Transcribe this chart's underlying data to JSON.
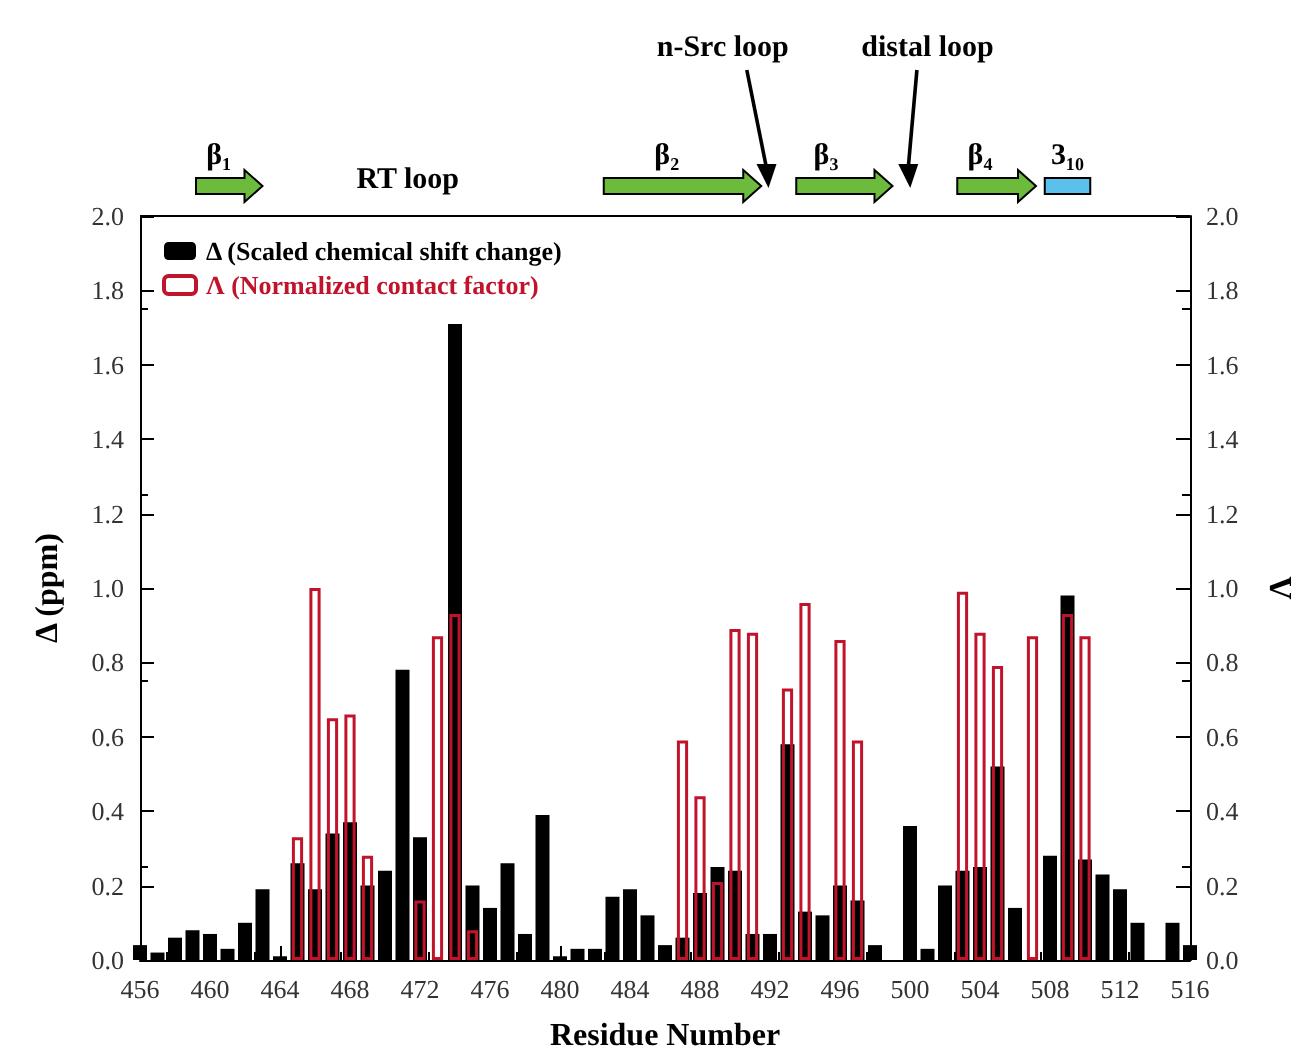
{
  "chart_data": {
    "type": "bar",
    "xlabel": "Residue Number",
    "ylabel": "Δ (ppm)",
    "y2label": "Λ",
    "x": [
      456,
      457,
      458,
      459,
      460,
      461,
      462,
      463,
      464,
      465,
      466,
      467,
      468,
      469,
      470,
      471,
      472,
      473,
      474,
      475,
      476,
      477,
      478,
      479,
      480,
      481,
      482,
      483,
      484,
      485,
      486,
      487,
      488,
      489,
      490,
      491,
      492,
      493,
      494,
      495,
      496,
      497,
      498,
      499,
      500,
      501,
      502,
      503,
      504,
      505,
      506,
      507,
      508,
      509,
      510,
      511,
      512,
      513,
      514,
      515,
      516
    ],
    "series": [
      {
        "name": "Δ (Scaled chemical shift change)",
        "color": "#000000",
        "values": [
          0.04,
          0.02,
          0.06,
          0.08,
          0.07,
          0.03,
          0.1,
          0.19,
          0.01,
          0.26,
          0.19,
          0.34,
          0.37,
          0.2,
          0.24,
          0.78,
          0.33,
          null,
          1.71,
          0.2,
          0.14,
          0.26,
          0.07,
          0.39,
          0.01,
          0.03,
          0.03,
          0.17,
          0.19,
          0.12,
          0.04,
          0.06,
          0.18,
          0.25,
          0.24,
          0.07,
          0.07,
          0.58,
          0.13,
          0.12,
          0.2,
          0.16,
          0.04,
          null,
          0.36,
          0.03,
          0.2,
          0.24,
          0.25,
          0.52,
          0.14,
          null,
          0.28,
          0.98,
          0.27,
          0.23,
          0.19,
          0.1,
          null,
          0.1,
          0.04
        ]
      },
      {
        "name": "Λ (Normalized contact factor)",
        "color": "#c0142c",
        "values": [
          null,
          null,
          null,
          null,
          null,
          null,
          null,
          null,
          null,
          0.33,
          1.0,
          0.65,
          0.66,
          0.28,
          null,
          null,
          0.16,
          0.87,
          0.93,
          0.08,
          null,
          null,
          null,
          null,
          null,
          null,
          null,
          null,
          null,
          null,
          null,
          0.59,
          0.44,
          0.21,
          0.89,
          0.88,
          null,
          0.73,
          0.96,
          null,
          0.86,
          0.59,
          null,
          null,
          null,
          null,
          null,
          0.99,
          0.88,
          0.79,
          null,
          0.87,
          null,
          0.93,
          0.87,
          null,
          null,
          null,
          null,
          null,
          null
        ]
      }
    ],
    "xlim": [
      456,
      516
    ],
    "xticks": [
      456,
      460,
      464,
      468,
      472,
      476,
      480,
      484,
      488,
      492,
      496,
      500,
      504,
      508,
      512,
      516
    ],
    "ylim": [
      0,
      2
    ],
    "yticks": [
      {
        "value": 0,
        "label": "0.0"
      },
      0.2,
      0.4,
      0.6,
      0.8,
      {
        "value": 1,
        "label": "1.0"
      },
      1.2,
      1.4,
      1.6,
      1.8,
      {
        "value": 2,
        "label": "2.0"
      }
    ],
    "y2lim": [
      0,
      2
    ],
    "y2ticks": [
      {
        "value": 0,
        "label": "0.0"
      },
      0.2,
      0.4,
      0.6,
      0.8,
      {
        "value": 1,
        "label": "1.0"
      },
      1.2,
      1.4,
      1.6,
      1.8,
      {
        "value": 2,
        "label": "2.0"
      }
    ],
    "legend": "top left",
    "grid": false,
    "annotations": [
      "β₁",
      "RT loop",
      "β₂",
      "n-Src loop",
      "β₃",
      "distal loop",
      "β₄",
      "3₁₀"
    ]
  }
}
